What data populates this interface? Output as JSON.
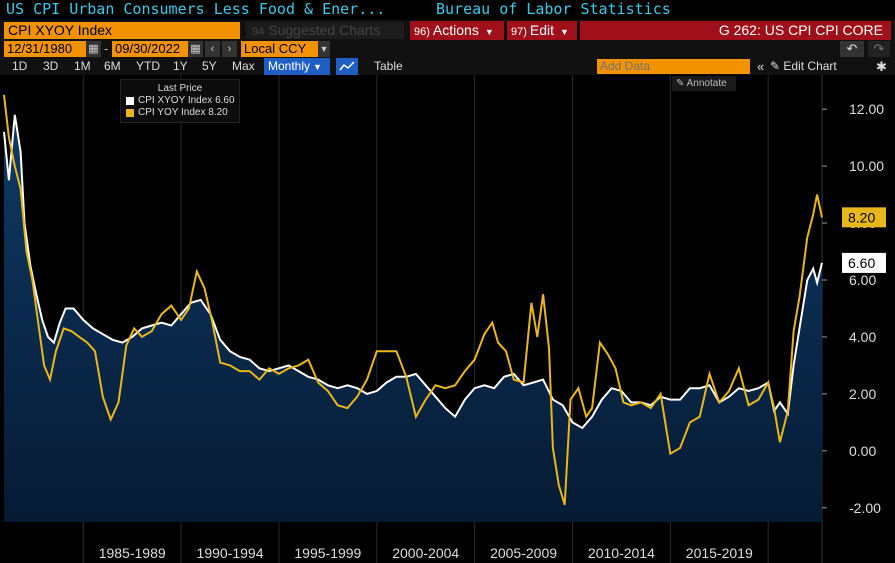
{
  "header": {
    "title": "US CPI Urban Consumers Less Food & Ener...",
    "source": "Bureau of Labor Statistics"
  },
  "toolbar": {
    "security": "CPI XYOY Index",
    "suggested": "Suggested Charts",
    "suggested_num": "94",
    "actions_num": "96)",
    "actions": "Actions",
    "edit_num": "97)",
    "edit": "Edit",
    "chart_title": "G 262: US CPI CPI CORE",
    "start_date": "12/31/1980",
    "end_date": "09/30/2022",
    "currency": "Local CCY",
    "ranges": [
      "1D",
      "3D",
      "1M",
      "6M",
      "YTD",
      "1Y",
      "5Y",
      "Max"
    ],
    "frequency": "Monthly",
    "table": "Table",
    "add_data_placeholder": "Add Data",
    "edit_chart": "Edit Chart",
    "annotate": "Annotate"
  },
  "legend": {
    "header": "Last Price",
    "items": [
      {
        "label": "CPI XYOY Index 6.60",
        "color": "#ffffff"
      },
      {
        "label": "CPI YOY Index  8.20",
        "color": "#e8b81a"
      }
    ]
  },
  "colors": {
    "core": "#ffffff",
    "headline": "#e8b81a",
    "area_top": "#0f3a66",
    "area_bottom": "#061a33",
    "orange": "#f39200",
    "red": "#a0101a",
    "title": "#3cc8e6"
  },
  "chart_data": {
    "type": "line",
    "title": "US CPI Urban Consumers Less Food & Energy",
    "x_range": [
      1980.95,
      2022.75
    ],
    "ylim": [
      -2.5,
      13.2
    ],
    "y_ticks": [
      "12.00",
      "10.00",
      "8.00",
      "6.00",
      "4.00",
      "2.00",
      "0.00",
      "-2.00"
    ],
    "y_tick_values": [
      12,
      10,
      8,
      6,
      4,
      2,
      0,
      -2
    ],
    "x_period_labels": [
      "1985-1989",
      "1990-1994",
      "1995-1999",
      "2000-2004",
      "2005-2009",
      "2010-2014",
      "2015-2019"
    ],
    "x_period_bounds": [
      1985,
      1990,
      1995,
      2000,
      2005,
      2010,
      2015,
      2020
    ],
    "series": [
      {
        "name": "CPI XYOY Index",
        "last": "6.60",
        "x": [
          1980.95,
          1981.2,
          1981.5,
          1981.8,
          1982.0,
          1982.3,
          1982.6,
          1982.9,
          1983.2,
          1983.5,
          1983.8,
          1984.1,
          1984.5,
          1985.0,
          1985.5,
          1986.0,
          1986.5,
          1987.0,
          1987.5,
          1988.0,
          1988.5,
          1989.0,
          1989.5,
          1990.0,
          1990.5,
          1991.0,
          1991.5,
          1992.0,
          1992.5,
          1993.0,
          1993.5,
          1994.0,
          1994.5,
          1995.0,
          1995.5,
          1996.0,
          1996.5,
          1997.0,
          1997.5,
          1998.0,
          1998.5,
          1999.0,
          1999.5,
          2000.0,
          2000.5,
          2001.0,
          2001.5,
          2002.0,
          2002.5,
          2003.0,
          2003.5,
          2004.0,
          2004.5,
          2005.0,
          2005.5,
          2006.0,
          2006.5,
          2007.0,
          2007.5,
          2008.0,
          2008.5,
          2009.0,
          2009.5,
          2010.0,
          2010.5,
          2011.0,
          2011.5,
          2012.0,
          2012.5,
          2013.0,
          2013.5,
          2014.0,
          2014.5,
          2015.0,
          2015.5,
          2016.0,
          2016.5,
          2017.0,
          2017.5,
          2018.0,
          2018.5,
          2019.0,
          2019.5,
          2020.0,
          2020.3,
          2020.6,
          2021.0,
          2021.3,
          2021.6,
          2022.0,
          2022.3,
          2022.5,
          2022.75
        ],
        "values": [
          11.2,
          9.5,
          11.8,
          10.5,
          8.0,
          6.5,
          5.5,
          4.6,
          4.0,
          3.8,
          4.5,
          5.0,
          5.0,
          4.6,
          4.3,
          4.1,
          3.9,
          3.8,
          4.0,
          4.3,
          4.4,
          4.5,
          4.4,
          4.8,
          5.2,
          5.3,
          4.8,
          3.9,
          3.5,
          3.3,
          3.2,
          2.9,
          2.8,
          2.9,
          3.0,
          2.8,
          2.6,
          2.5,
          2.3,
          2.2,
          2.3,
          2.2,
          2.0,
          2.1,
          2.4,
          2.6,
          2.6,
          2.7,
          2.3,
          1.9,
          1.5,
          1.2,
          1.8,
          2.2,
          2.3,
          2.2,
          2.6,
          2.7,
          2.3,
          2.4,
          2.5,
          1.8,
          1.6,
          1.0,
          0.8,
          1.2,
          1.8,
          2.2,
          2.1,
          1.7,
          1.7,
          1.6,
          1.9,
          1.8,
          1.8,
          2.2,
          2.2,
          2.3,
          1.7,
          1.9,
          2.2,
          2.1,
          2.2,
          2.4,
          1.4,
          1.7,
          1.3,
          3.0,
          4.3,
          6.0,
          6.4,
          5.9,
          6.6
        ]
      },
      {
        "name": "CPI YOY Index",
        "last": "8.20",
        "x": [
          1980.95,
          1981.2,
          1981.5,
          1981.8,
          1982.1,
          1982.4,
          1982.7,
          1983.0,
          1983.3,
          1983.6,
          1984.0,
          1984.4,
          1984.8,
          1985.2,
          1985.6,
          1986.0,
          1986.4,
          1986.8,
          1987.2,
          1987.6,
          1988.0,
          1988.5,
          1989.0,
          1989.5,
          1990.0,
          1990.4,
          1990.8,
          1991.2,
          1991.6,
          1992.0,
          1992.5,
          1993.0,
          1993.5,
          1994.0,
          1994.5,
          1995.0,
          1995.5,
          1996.0,
          1996.5,
          1997.0,
          1997.5,
          1998.0,
          1998.5,
          1999.0,
          1999.5,
          2000.0,
          2000.5,
          2001.0,
          2001.5,
          2002.0,
          2002.5,
          2003.0,
          2003.5,
          2004.0,
          2004.5,
          2005.0,
          2005.5,
          2005.9,
          2006.2,
          2006.6,
          2007.0,
          2007.5,
          2007.9,
          2008.2,
          2008.5,
          2008.8,
          2009.0,
          2009.3,
          2009.6,
          2009.9,
          2010.3,
          2010.7,
          2011.0,
          2011.4,
          2011.8,
          2012.2,
          2012.6,
          2013.0,
          2013.5,
          2014.0,
          2014.5,
          2015.0,
          2015.5,
          2016.0,
          2016.5,
          2017.0,
          2017.5,
          2018.0,
          2018.5,
          2019.0,
          2019.5,
          2020.0,
          2020.3,
          2020.6,
          2021.0,
          2021.3,
          2021.6,
          2022.0,
          2022.3,
          2022.5,
          2022.75
        ],
        "values": [
          12.5,
          11.0,
          10.0,
          9.2,
          7.0,
          6.0,
          4.5,
          3.0,
          2.5,
          3.5,
          4.3,
          4.2,
          4.0,
          3.8,
          3.5,
          1.9,
          1.1,
          1.7,
          3.7,
          4.3,
          4.0,
          4.2,
          4.8,
          5.1,
          4.6,
          5.0,
          6.3,
          5.7,
          4.5,
          3.1,
          3.0,
          2.8,
          2.8,
          2.5,
          2.9,
          2.7,
          2.9,
          3.0,
          3.2,
          2.4,
          2.1,
          1.6,
          1.5,
          1.9,
          2.5,
          3.5,
          3.5,
          3.5,
          2.6,
          1.2,
          1.8,
          2.3,
          2.2,
          2.3,
          2.8,
          3.2,
          4.1,
          4.5,
          3.8,
          3.5,
          2.5,
          2.4,
          5.2,
          4.0,
          5.5,
          3.6,
          0.1,
          -1.2,
          -1.9,
          1.8,
          2.2,
          1.2,
          1.5,
          3.8,
          3.4,
          2.9,
          1.7,
          1.6,
          1.7,
          1.5,
          2.0,
          -0.1,
          0.1,
          1.0,
          1.2,
          2.7,
          1.7,
          2.1,
          2.9,
          1.6,
          1.8,
          2.4,
          1.5,
          0.3,
          1.4,
          4.2,
          5.4,
          7.5,
          8.3,
          9.0,
          8.2
        ]
      }
    ]
  }
}
